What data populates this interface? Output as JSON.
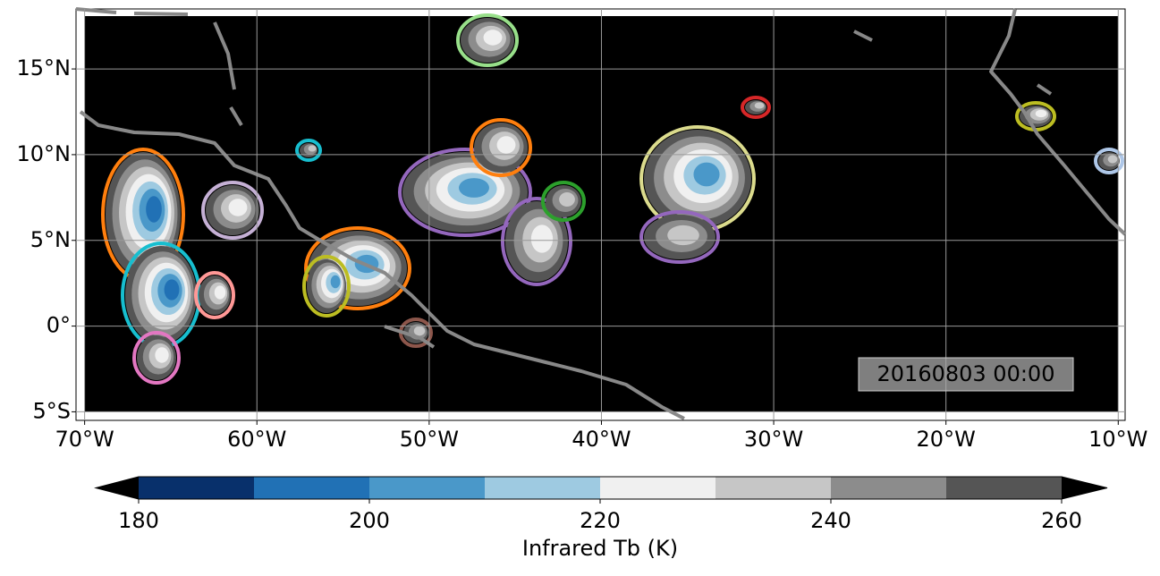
{
  "map": {
    "xlim": [
      -70.5,
      -9.6
    ],
    "ylim": [
      -5.5,
      18.5
    ],
    "xticks": [
      {
        "value": -70,
        "label": "70°W"
      },
      {
        "value": -60,
        "label": "60°W"
      },
      {
        "value": -50,
        "label": "50°W"
      },
      {
        "value": -40,
        "label": "40°W"
      },
      {
        "value": -30,
        "label": "30°W"
      },
      {
        "value": -20,
        "label": "20°W"
      },
      {
        "value": -10,
        "label": "10°W"
      }
    ],
    "yticks": [
      {
        "value": -5,
        "label": "5°S"
      },
      {
        "value": 0,
        "label": "0°"
      },
      {
        "value": 5,
        "label": "5°N"
      },
      {
        "value": 10,
        "label": "10°N"
      },
      {
        "value": 15,
        "label": "15°N"
      }
    ],
    "grid": true,
    "timestamp": "20160803 00:00"
  },
  "colorbar": {
    "lim": [
      180,
      260
    ],
    "bounds": [
      180,
      190,
      200,
      210,
      220,
      230,
      240,
      250,
      260
    ],
    "colors": [
      "#08306b",
      "#2171b5",
      "#4a98c9",
      "#9ecae1",
      "#f0f0f0",
      "#c6c6c6",
      "#8c8c8c",
      "#555555"
    ],
    "under_color": "#000000",
    "over_color": "#000000",
    "ticks": [
      180,
      200,
      220,
      240,
      260
    ],
    "label": "Infrared Tb (K)"
  }
}
